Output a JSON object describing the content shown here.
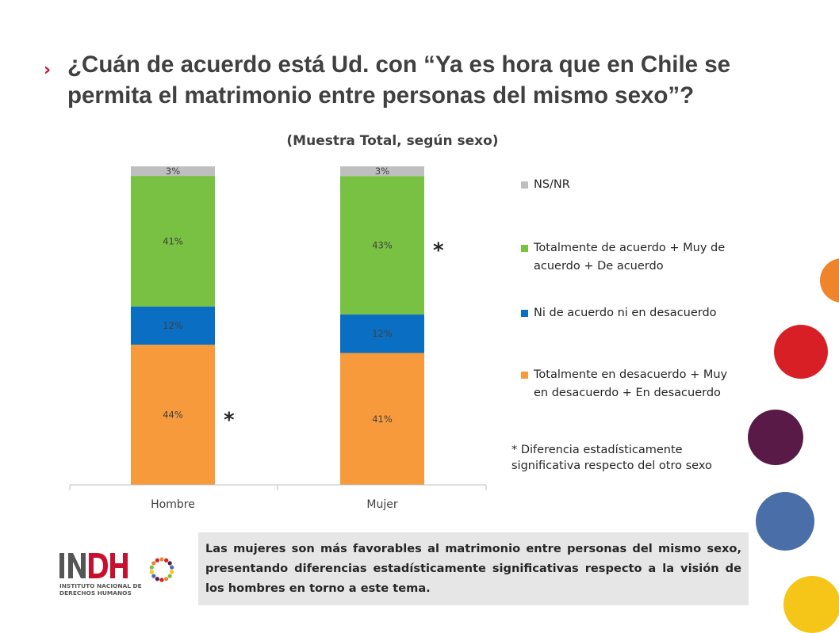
{
  "slide": {
    "title": "¿Cuán de acuerdo está Ud. con “Ya es hora que en Chile se permita el matrimonio entre personas del mismo sexo”?",
    "subtitle": "(Muestra Total, según sexo)",
    "note": "* Diferencia estadísticamente significativa respecto del otro sexo",
    "summary": "Las mujeres son más favorables al matrimonio entre personas del mismo sexo, presentando diferencias estadísticamente significativas respecto a la visión de los hombres en torno a este tema.",
    "logo": {
      "line1": "INSTITUTO NACIONAL DE",
      "line2": "DERECHOS HUMANOS"
    }
  },
  "chart_data": {
    "type": "bar",
    "stacked": true,
    "title": "(Muestra Total, según sexo)",
    "categories": [
      "Hombre",
      "Mujer"
    ],
    "ylim": [
      0,
      100
    ],
    "grid": false,
    "legend_position": "right",
    "series": [
      {
        "name": "Totalmente en desacuerdo + Muy en desacuerdo + En desacuerdo",
        "values": [
          44,
          41
        ],
        "labels": [
          "44%",
          "41%"
        ],
        "color": "#f79a3b"
      },
      {
        "name": "Ni de acuerdo ni en desacuerdo",
        "values": [
          12,
          12
        ],
        "labels": [
          "12%",
          "12%"
        ],
        "color": "#0a6fc2"
      },
      {
        "name": "Totalmente de acuerdo + Muy de acuerdo + De acuerdo",
        "values": [
          41,
          43
        ],
        "labels": [
          "41%",
          "43%"
        ],
        "color": "#79c142"
      },
      {
        "name": "NS/NR",
        "values": [
          3,
          3
        ],
        "labels": [
          "3%",
          "3%"
        ],
        "color": "#bfbfbf"
      }
    ],
    "legend_order": [
      "NS/NR",
      "Totalmente de acuerdo + Muy de acuerdo + De acuerdo",
      "Ni de acuerdo ni en desacuerdo",
      "Totalmente en desacuerdo + Muy en desacuerdo + En desacuerdo"
    ],
    "annotations": [
      {
        "text": "*",
        "category": "Hombre",
        "series": "Totalmente en desacuerdo + Muy en desacuerdo + En desacuerdo"
      },
      {
        "text": "*",
        "category": "Mujer",
        "series": "Totalmente de acuerdo + Muy de acuerdo + De acuerdo"
      }
    ]
  },
  "decor": {
    "circle_colors": [
      "#f0842b",
      "#d81f26",
      "#5a1a47",
      "#4a6ea8",
      "#f5c518"
    ]
  }
}
